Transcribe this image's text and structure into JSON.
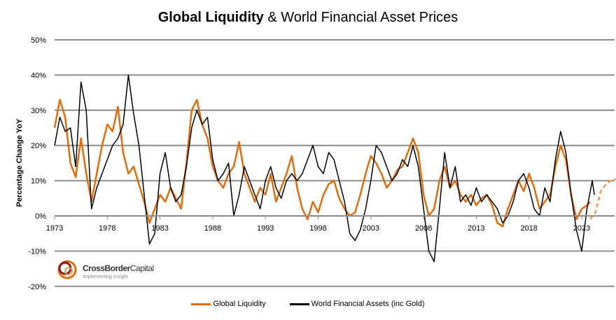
{
  "chart_data": {
    "type": "line",
    "title_bold": "Global Liquidity",
    "title_rest": " & World Financial Asset Prices",
    "ylabel": "Percentage Change YoY",
    "xlabel": "",
    "ylim": [
      -20,
      50
    ],
    "xlim": [
      1973,
      2026.5
    ],
    "y_ticks": [
      "50%",
      "40%",
      "30%",
      "20%",
      "10%",
      "0%",
      "-10%",
      "-20%"
    ],
    "y_tick_values": [
      50,
      40,
      30,
      20,
      10,
      0,
      -10,
      -20
    ],
    "x_ticks": [
      "1973",
      "1978",
      "1983",
      "1988",
      "1993",
      "1998",
      "2003",
      "2008",
      "2013",
      "2018",
      "2023"
    ],
    "x_tick_values": [
      1973,
      1978,
      1983,
      1988,
      1993,
      1998,
      2003,
      2008,
      2013,
      2018,
      2023
    ],
    "grid": true,
    "legend_position": "bottom",
    "series": [
      {
        "name": "Global Liquidity",
        "color": "#E36C0A",
        "style": "solid",
        "x": [
          1973,
          1973.5,
          1974,
          1974.5,
          1975,
          1975.5,
          1976,
          1976.5,
          1977,
          1977.5,
          1978,
          1978.5,
          1979,
          1979.5,
          1980,
          1980.5,
          1981,
          1981.5,
          1982,
          1982.5,
          1983,
          1983.5,
          1984,
          1984.5,
          1985,
          1985.5,
          1986,
          1986.5,
          1987,
          1987.5,
          1988,
          1988.5,
          1989,
          1989.5,
          1990,
          1990.5,
          1991,
          1991.5,
          1992,
          1992.5,
          1993,
          1993.5,
          1994,
          1994.5,
          1995,
          1995.5,
          1996,
          1996.5,
          1997,
          1997.5,
          1998,
          1998.5,
          1999,
          1999.5,
          2000,
          2000.5,
          2001,
          2001.5,
          2002,
          2002.5,
          2003,
          2003.5,
          2004,
          2004.5,
          2005,
          2005.5,
          2006,
          2006.5,
          2007,
          2007.5,
          2008,
          2008.5,
          2009,
          2009.5,
          2010,
          2010.5,
          2011,
          2011.5,
          2012,
          2012.5,
          2013,
          2013.5,
          2014,
          2014.5,
          2015,
          2015.5,
          2016,
          2016.5,
          2017,
          2017.5,
          2018,
          2018.5,
          2019,
          2019.5,
          2020,
          2020.5,
          2021,
          2021.5,
          2022,
          2022.5,
          2023,
          2023.5,
          2023.8
        ],
        "values": [
          25,
          33,
          28,
          15,
          11,
          22,
          12,
          4,
          12,
          20,
          26,
          24,
          31,
          18,
          12,
          14,
          9,
          4,
          -2,
          2,
          6,
          4,
          8,
          5,
          2,
          15,
          30,
          33,
          26,
          22,
          14,
          10,
          8,
          12,
          14,
          21,
          12,
          8,
          4,
          8,
          6,
          12,
          4,
          8,
          12,
          17,
          8,
          2,
          -1,
          4,
          1,
          6,
          9,
          10,
          5,
          2,
          0,
          1,
          6,
          12,
          17,
          15,
          12,
          8,
          10,
          13,
          14,
          18,
          22,
          18,
          6,
          0,
          2,
          10,
          14,
          8,
          10,
          6,
          4,
          6,
          3,
          5,
          6,
          3,
          -2,
          -3,
          2,
          6,
          10,
          7,
          12,
          8,
          2,
          4,
          6,
          14,
          20,
          16,
          6,
          -1,
          2,
          3,
          4
        ]
      },
      {
        "name": "Global Liquidity (forecast)",
        "color": "#F29B4C",
        "style": "dashed",
        "x": [
          2023.8,
          2024.3,
          2024.8,
          2025.3,
          2025.8,
          2026.3
        ],
        "values": [
          -1,
          1,
          7,
          9,
          10,
          10.5
        ]
      },
      {
        "name": "World Financial Assets (inc Gold)",
        "color": "#000000",
        "style": "solid",
        "x": [
          1973,
          1973.5,
          1974,
          1974.5,
          1975,
          1975.5,
          1976,
          1976.5,
          1977,
          1977.5,
          1978,
          1978.5,
          1979,
          1979.5,
          1980,
          1980.5,
          1981,
          1981.5,
          1982,
          1982.5,
          1983,
          1983.5,
          1984,
          1984.5,
          1985,
          1985.5,
          1986,
          1986.5,
          1987,
          1987.5,
          1988,
          1988.5,
          1989,
          1989.5,
          1990,
          1990.5,
          1991,
          1991.5,
          1992,
          1992.5,
          1993,
          1993.5,
          1994,
          1994.5,
          1995,
          1995.5,
          1996,
          1996.5,
          1997,
          1997.5,
          1998,
          1998.5,
          1999,
          1999.5,
          2000,
          2000.5,
          2001,
          2001.5,
          2002,
          2002.5,
          2003,
          2003.5,
          2004,
          2004.5,
          2005,
          2005.5,
          2006,
          2006.5,
          2007,
          2007.5,
          2008,
          2008.5,
          2009,
          2009.5,
          2010,
          2010.5,
          2011,
          2011.5,
          2012,
          2012.5,
          2013,
          2013.5,
          2014,
          2014.5,
          2015,
          2015.5,
          2016,
          2016.5,
          2017,
          2017.5,
          2018,
          2018.5,
          2019,
          2019.5,
          2020,
          2020.5,
          2021,
          2021.5,
          2022,
          2022.5,
          2023,
          2023.5,
          2024,
          2024.2
        ],
        "values": [
          20,
          28,
          24,
          25,
          14,
          38,
          30,
          2,
          8,
          12,
          16,
          20,
          22,
          26,
          40,
          29,
          20,
          6,
          -8,
          -5,
          12,
          18,
          8,
          4,
          6,
          14,
          25,
          30,
          26,
          28,
          16,
          10,
          12,
          15,
          0,
          6,
          14,
          10,
          6,
          2,
          10,
          14,
          8,
          5,
          10,
          12,
          10,
          12,
          16,
          20,
          14,
          12,
          18,
          16,
          10,
          4,
          -5,
          -7,
          -4,
          2,
          10,
          20,
          18,
          14,
          10,
          12,
          16,
          14,
          20,
          14,
          2,
          -10,
          -13,
          2,
          18,
          8,
          14,
          4,
          6,
          3,
          8,
          4,
          6,
          4,
          2,
          -2,
          0,
          4,
          10,
          12,
          8,
          2,
          0,
          8,
          4,
          16,
          24,
          18,
          6,
          -4,
          -10,
          2,
          10,
          6
        ]
      }
    ]
  },
  "legend": {
    "items": [
      "Global Liquidity",
      "World Financial Assets (inc Gold)"
    ]
  },
  "logo": {
    "name_bold": "CrossBorder",
    "name_light": "Capital",
    "tagline": "Implementing Insight"
  }
}
